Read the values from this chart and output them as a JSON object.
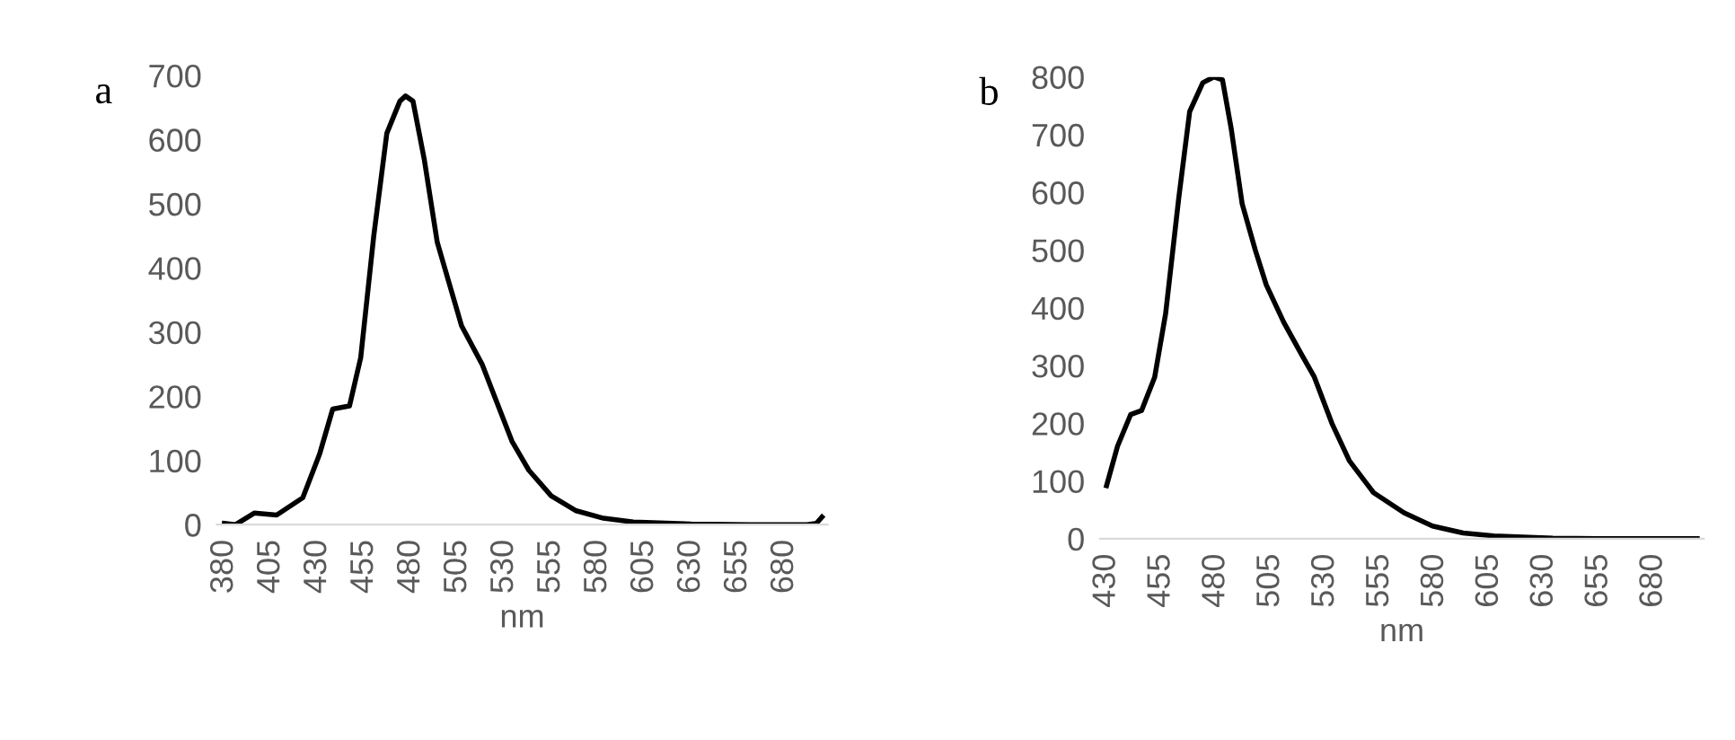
{
  "chart_data": [
    {
      "type": "line",
      "xlabel": "nm",
      "annotations": [
        "a"
      ],
      "x": [
        380,
        386,
        396,
        408,
        422,
        431,
        438,
        447,
        453,
        460,
        467,
        474,
        477,
        481,
        487,
        494,
        500,
        507,
        518,
        526,
        534,
        543,
        555,
        568,
        583,
        599,
        630,
        661,
        692,
        697,
        700
      ],
      "series": [
        {
          "color": "#000000",
          "values": [
            2,
            0,
            18,
            15,
            42,
            110,
            180,
            185,
            260,
            450,
            610,
            660,
            668,
            660,
            570,
            440,
            380,
            310,
            250,
            190,
            130,
            85,
            45,
            22,
            10,
            4,
            1,
            0,
            0,
            2,
            12
          ]
        }
      ],
      "xlim": [
        376,
        703
      ],
      "xticks": [
        380,
        405,
        430,
        455,
        480,
        505,
        530,
        555,
        580,
        605,
        630,
        655,
        680
      ],
      "ylim": [
        0,
        700
      ],
      "yticks": [
        0,
        100,
        200,
        300,
        400,
        500,
        600,
        700
      ],
      "grid": false,
      "legend": false
    },
    {
      "type": "line",
      "xlabel": "nm",
      "annotations": [
        "b"
      ],
      "x": [
        430,
        435,
        441,
        446,
        452,
        457,
        463,
        468,
        474,
        479,
        483,
        487,
        492,
        498,
        503,
        511,
        519,
        525,
        533,
        541,
        552,
        566,
        579,
        593,
        607,
        634,
        662,
        700
      ],
      "series": [
        {
          "color": "#000000",
          "values": [
            92,
            160,
            215,
            222,
            280,
            390,
            590,
            740,
            790,
            800,
            795,
            710,
            580,
            500,
            440,
            375,
            320,
            280,
            200,
            135,
            80,
            45,
            22,
            10,
            5,
            1,
            0,
            0
          ]
        }
      ],
      "xlim": [
        427,
        703
      ],
      "xticks": [
        430,
        455,
        480,
        505,
        530,
        555,
        580,
        605,
        630,
        655,
        680
      ],
      "ylim": [
        0,
        800
      ],
      "yticks": [
        0,
        100,
        200,
        300,
        400,
        500,
        600,
        700,
        800
      ],
      "grid": false,
      "legend": false
    }
  ]
}
